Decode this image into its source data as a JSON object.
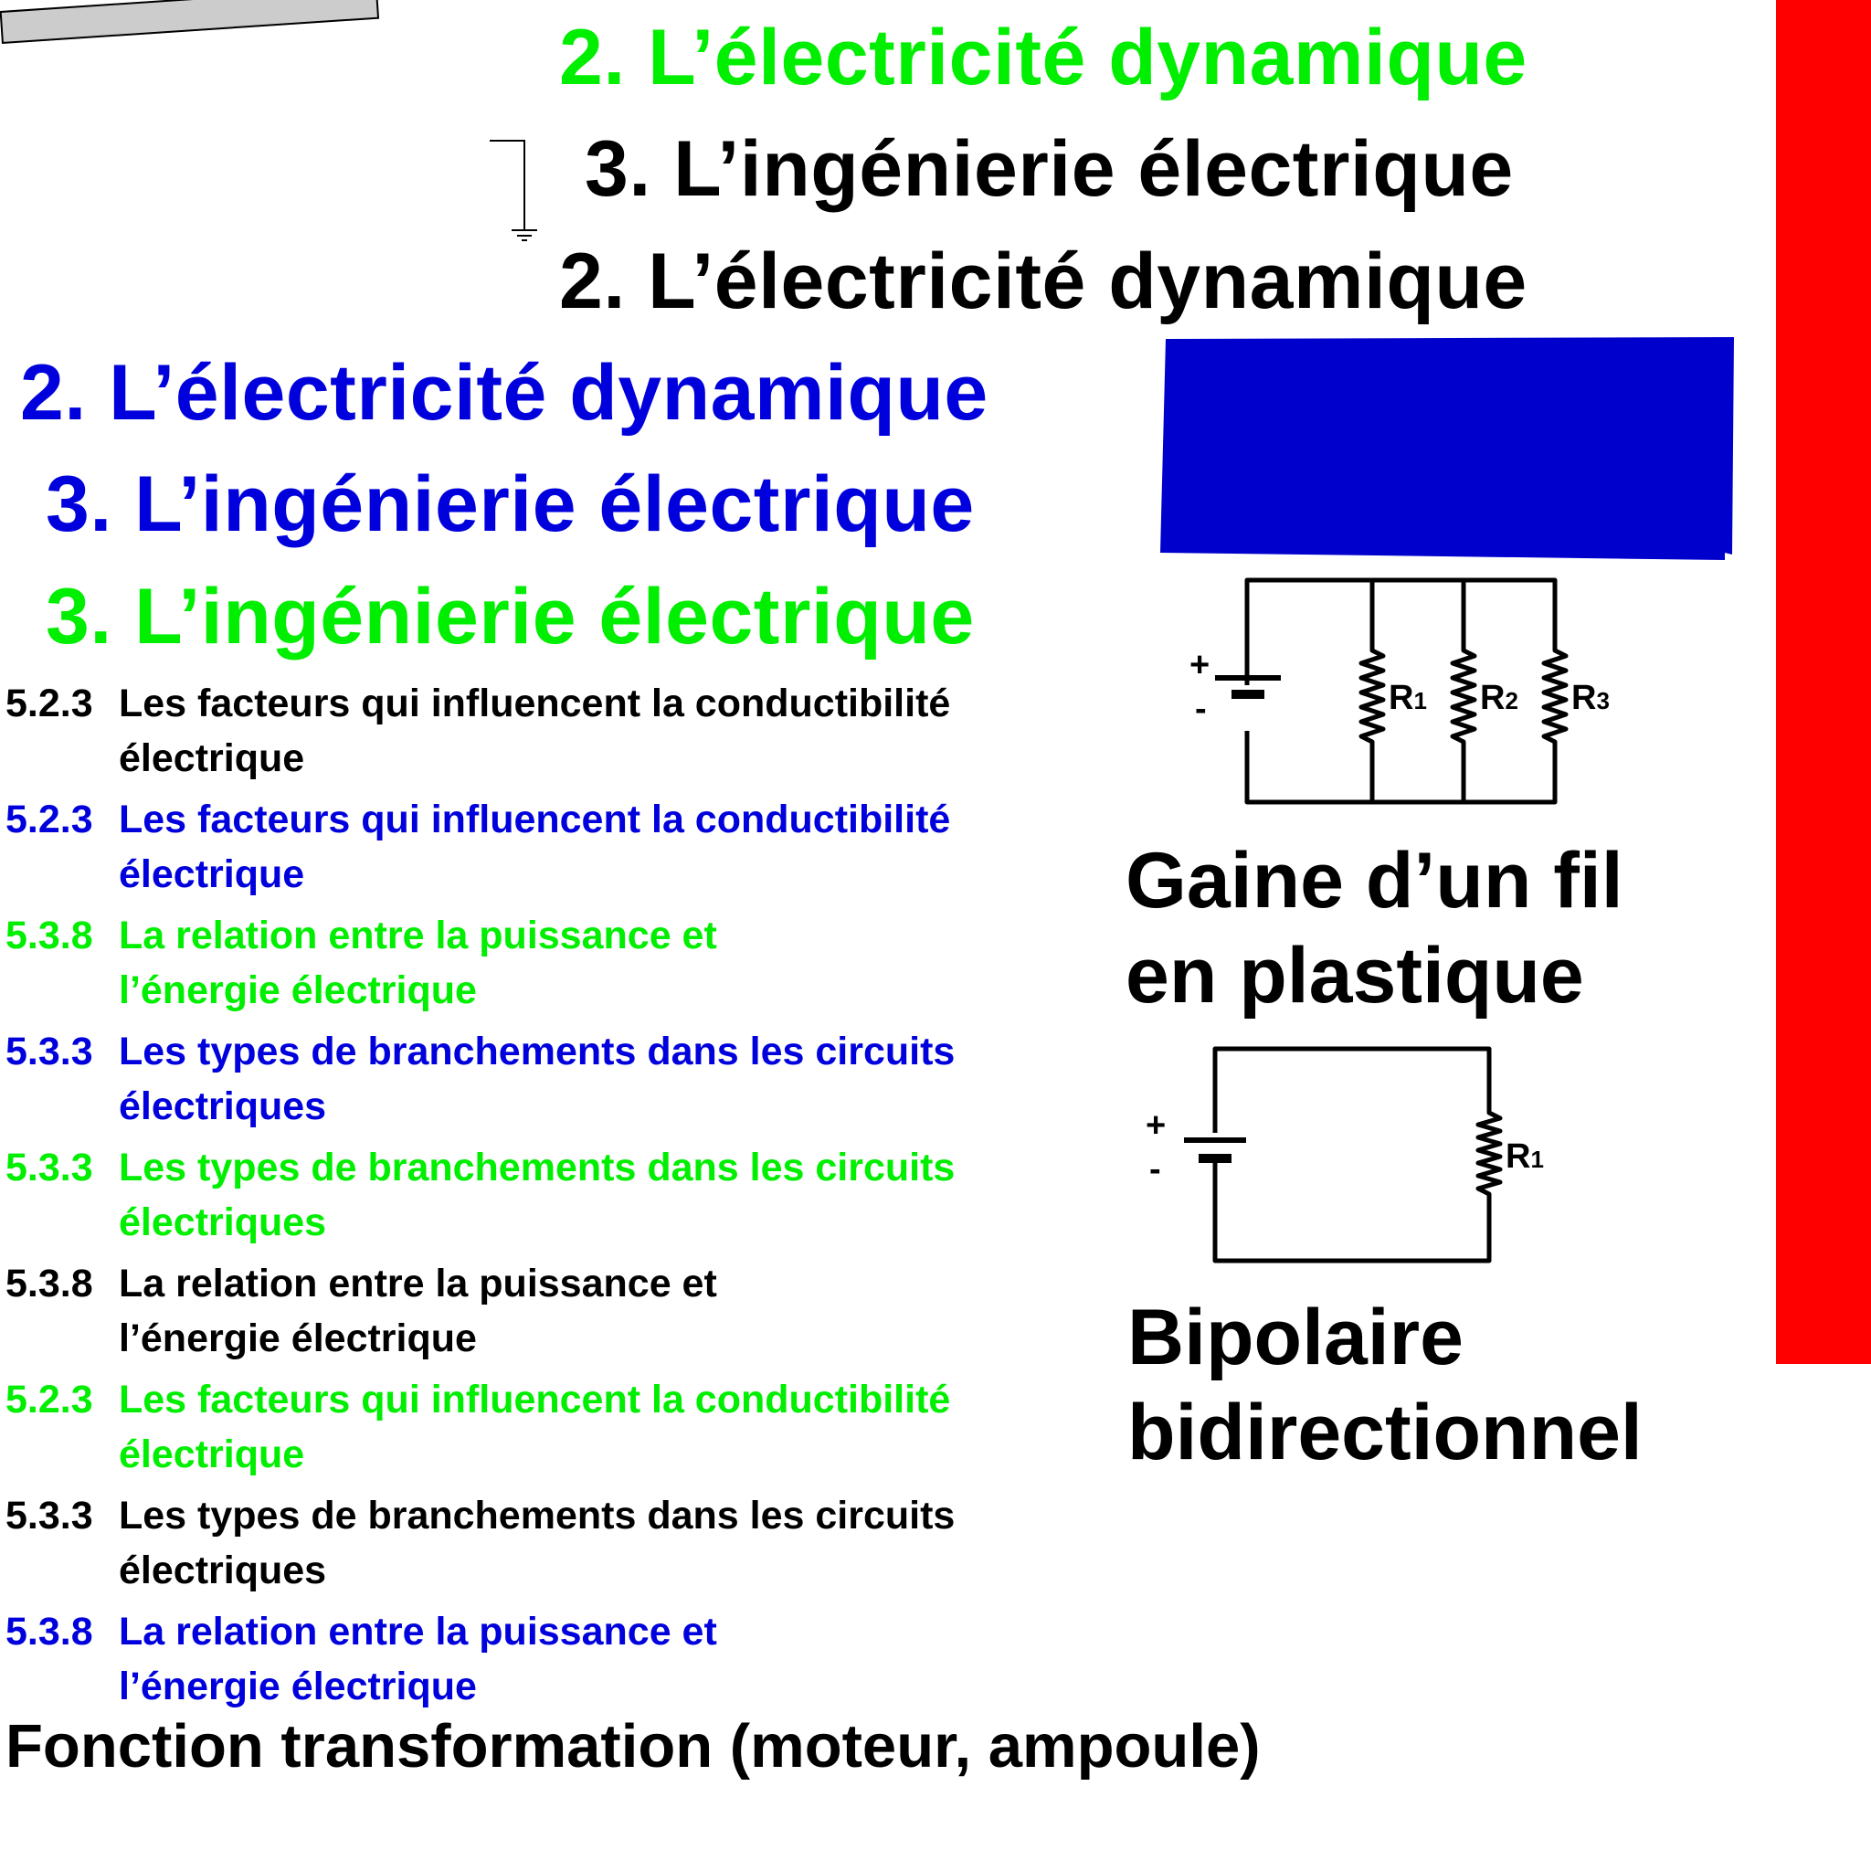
{
  "headings": {
    "green_dynamique": "2. L’électricité dynamique",
    "black_ingenierie": "3. L’ingénierie électrique",
    "black_dynamique": "2. L’électricité dynamique",
    "blue_dynamique": "2. L’électricité dynamique",
    "blue_ingenierie": "3. L’ingénierie électrique",
    "green_ingenierie": "3. L’ingénierie électrique"
  },
  "colors": {
    "green": "#00ee00",
    "blue": "#0000dd",
    "black": "#000000",
    "red_bar": "#ff0000",
    "blue_box": "#0000cc",
    "gray_bar": "#cccccc"
  },
  "items": [
    {
      "num": "5.2.3",
      "line1": "Les facteurs qui influencent la conductibilité",
      "line2": "électrique"
    },
    {
      "num": "5.2.3",
      "line1": "Les facteurs qui influencent la conductibilité",
      "line2": "électrique"
    },
    {
      "num": "5.3.8",
      "line1": "La relation entre la puissance et",
      "line2": "l’énergie électrique"
    },
    {
      "num": "5.3.3",
      "line1": "Les types de branchements dans les circuits",
      "line2": "électriques"
    },
    {
      "num": "5.3.3",
      "line1": "Les types de branchements dans les circuits",
      "line2": "électriques"
    },
    {
      "num": "5.3.8",
      "line1": "La relation entre la puissance et",
      "line2": "l’énergie électrique"
    },
    {
      "num": "5.2.3",
      "line1": "Les facteurs qui influencent la conductibilité",
      "line2": "électrique"
    },
    {
      "num": "5.3.3",
      "line1": "Les types de branchements dans les circuits",
      "line2": "électriques"
    },
    {
      "num": "5.3.8",
      "line1": "La relation entre la puissance et",
      "line2": "l’énergie électrique"
    }
  ],
  "terms": {
    "gaine_line1": "Gaine d’un fil",
    "gaine_line2": "en plastique",
    "bipolaire_line1": "Bipolaire",
    "bipolaire_line2": "bidirectionnel",
    "fonction": "Fonction transformation (moteur, ampoule)"
  },
  "circuits": {
    "plus": "+",
    "minus": "-",
    "resistor_letter": "R",
    "r1_sub": "1",
    "r2_sub": "2",
    "r3_sub": "3"
  }
}
